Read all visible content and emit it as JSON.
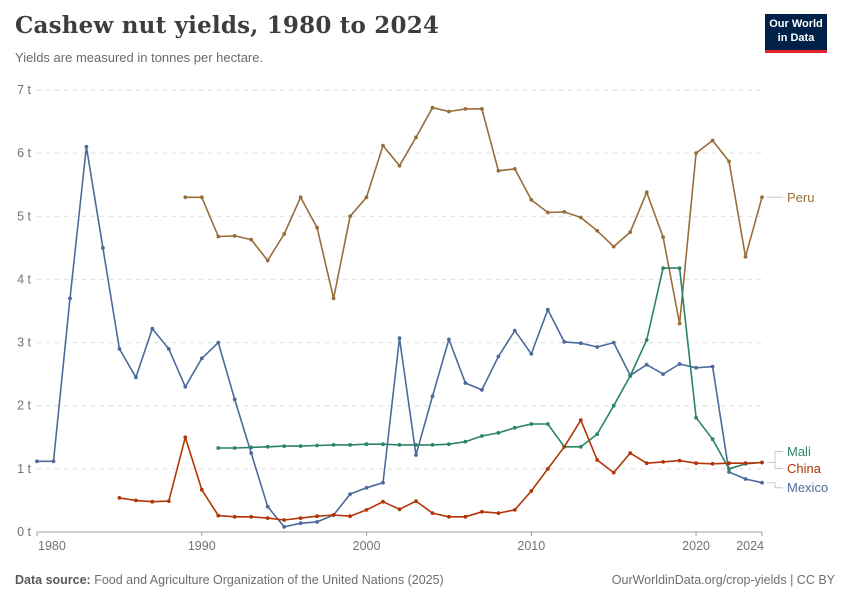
{
  "header": {
    "title": "Cashew nut yields, 1980 to 2024",
    "subtitle": "Yields are measured in tonnes per hectare."
  },
  "logo": {
    "line1": "Our World",
    "line2": "in Data",
    "bg_color": "#002147",
    "bar_color": "#E3242B"
  },
  "footer": {
    "source_label": "Data source:",
    "source_text": " Food and Agriculture Organization of the United Nations (2025)",
    "link_text": "OurWorldinData.org/crop-yields | CC BY"
  },
  "chart_data": {
    "type": "line",
    "title": "Cashew nut yields, 1980 to 2024",
    "unit": "tonnes per hectare",
    "xlim": [
      1980,
      2024
    ],
    "ylim": [
      0,
      7
    ],
    "x_ticks": [
      1980,
      1990,
      2000,
      2010,
      2020,
      2024
    ],
    "y_ticks": [
      {
        "value": 0,
        "label": "0 t"
      },
      {
        "value": 1,
        "label": "1 t"
      },
      {
        "value": 2,
        "label": "2 t"
      },
      {
        "value": 3,
        "label": "3 t"
      },
      {
        "value": 4,
        "label": "4 t"
      },
      {
        "value": 5,
        "label": "5 t"
      },
      {
        "value": 6,
        "label": "6 t"
      },
      {
        "value": 7,
        "label": "7 t"
      }
    ],
    "grid": "horizontal-dashed",
    "legend_position": "right-end-labels",
    "series": [
      {
        "name": "Mexico",
        "color": "#4C6A9C",
        "points": [
          [
            1980,
            1.12
          ],
          [
            1981,
            1.12
          ],
          [
            1982,
            3.7
          ],
          [
            1983,
            6.1
          ],
          [
            1984,
            4.5
          ],
          [
            1985,
            2.9
          ],
          [
            1986,
            2.45
          ],
          [
            1987,
            3.22
          ],
          [
            1988,
            2.9
          ],
          [
            1989,
            2.3
          ],
          [
            1990,
            2.75
          ],
          [
            1991,
            3.0
          ],
          [
            1992,
            2.1
          ],
          [
            1993,
            1.25
          ],
          [
            1994,
            0.4
          ],
          [
            1995,
            0.08
          ],
          [
            1996,
            0.14
          ],
          [
            1997,
            0.16
          ],
          [
            1998,
            0.27
          ],
          [
            1999,
            0.6
          ],
          [
            2000,
            0.7
          ],
          [
            2001,
            0.78
          ],
          [
            2002,
            3.07
          ],
          [
            2003,
            1.22
          ],
          [
            2004,
            2.15
          ],
          [
            2005,
            3.05
          ],
          [
            2006,
            2.36
          ],
          [
            2007,
            2.25
          ],
          [
            2008,
            2.78
          ],
          [
            2009,
            3.19
          ],
          [
            2010,
            2.82
          ],
          [
            2011,
            3.52
          ],
          [
            2012,
            3.01
          ],
          [
            2013,
            2.99
          ],
          [
            2014,
            2.93
          ],
          [
            2015,
            3.0
          ],
          [
            2016,
            2.48
          ],
          [
            2017,
            2.65
          ],
          [
            2018,
            2.5
          ],
          [
            2019,
            2.66
          ],
          [
            2020,
            2.6
          ],
          [
            2021,
            2.62
          ],
          [
            2022,
            0.95
          ],
          [
            2023,
            0.84
          ],
          [
            2024,
            0.78
          ]
        ]
      },
      {
        "name": "Peru",
        "color": "#996D39",
        "points": [
          [
            1989,
            5.3
          ],
          [
            1990,
            5.3
          ],
          [
            1991,
            4.68
          ],
          [
            1992,
            4.69
          ],
          [
            1993,
            4.63
          ],
          [
            1994,
            4.3
          ],
          [
            1995,
            4.72
          ],
          [
            1996,
            5.3
          ],
          [
            1997,
            4.82
          ],
          [
            1998,
            3.7
          ],
          [
            1999,
            5.0
          ],
          [
            2000,
            5.3
          ],
          [
            2001,
            6.12
          ],
          [
            2002,
            5.8
          ],
          [
            2003,
            6.25
          ],
          [
            2004,
            6.72
          ],
          [
            2005,
            6.66
          ],
          [
            2006,
            6.7
          ],
          [
            2007,
            6.7
          ],
          [
            2008,
            5.72
          ],
          [
            2009,
            5.75
          ],
          [
            2010,
            5.26
          ],
          [
            2011,
            5.06
          ],
          [
            2012,
            5.07
          ],
          [
            2013,
            4.98
          ],
          [
            2014,
            4.77
          ],
          [
            2015,
            4.52
          ],
          [
            2016,
            4.75
          ],
          [
            2017,
            5.38
          ],
          [
            2018,
            4.67
          ],
          [
            2019,
            3.3
          ],
          [
            2020,
            6.0
          ],
          [
            2021,
            6.2
          ],
          [
            2022,
            5.87
          ],
          [
            2023,
            4.36
          ],
          [
            2024,
            5.3
          ]
        ]
      },
      {
        "name": "Mali",
        "color": "#2C8465",
        "points": [
          [
            1991,
            1.33
          ],
          [
            1992,
            1.33
          ],
          [
            1993,
            1.34
          ],
          [
            1994,
            1.35
          ],
          [
            1995,
            1.36
          ],
          [
            1996,
            1.36
          ],
          [
            1997,
            1.37
          ],
          [
            1998,
            1.38
          ],
          [
            1999,
            1.38
          ],
          [
            2000,
            1.39
          ],
          [
            2001,
            1.39
          ],
          [
            2002,
            1.38
          ],
          [
            2003,
            1.38
          ],
          [
            2004,
            1.38
          ],
          [
            2005,
            1.39
          ],
          [
            2006,
            1.43
          ],
          [
            2007,
            1.52
          ],
          [
            2008,
            1.57
          ],
          [
            2009,
            1.65
          ],
          [
            2010,
            1.71
          ],
          [
            2011,
            1.71
          ],
          [
            2012,
            1.35
          ],
          [
            2013,
            1.35
          ],
          [
            2014,
            1.55
          ],
          [
            2015,
            2.0
          ],
          [
            2016,
            2.47
          ],
          [
            2017,
            3.04
          ],
          [
            2018,
            4.18
          ],
          [
            2019,
            4.18
          ],
          [
            2020,
            1.81
          ],
          [
            2021,
            1.47
          ],
          [
            2022,
            1.0
          ],
          [
            2023,
            1.08
          ],
          [
            2024,
            1.1
          ]
        ]
      },
      {
        "name": "China",
        "color": "#B13507",
        "points": [
          [
            1985,
            0.54
          ],
          [
            1986,
            0.5
          ],
          [
            1987,
            0.48
          ],
          [
            1988,
            0.49
          ],
          [
            1989,
            1.5
          ],
          [
            1990,
            0.67
          ],
          [
            1991,
            0.26
          ],
          [
            1992,
            0.24
          ],
          [
            1993,
            0.24
          ],
          [
            1994,
            0.22
          ],
          [
            1995,
            0.19
          ],
          [
            1996,
            0.22
          ],
          [
            1997,
            0.25
          ],
          [
            1998,
            0.27
          ],
          [
            1999,
            0.25
          ],
          [
            2000,
            0.35
          ],
          [
            2001,
            0.48
          ],
          [
            2002,
            0.36
          ],
          [
            2003,
            0.49
          ],
          [
            2004,
            0.3
          ],
          [
            2005,
            0.24
          ],
          [
            2006,
            0.24
          ],
          [
            2007,
            0.32
          ],
          [
            2008,
            0.3
          ],
          [
            2009,
            0.35
          ],
          [
            2010,
            0.65
          ],
          [
            2011,
            1.0
          ],
          [
            2012,
            1.35
          ],
          [
            2013,
            1.77
          ],
          [
            2014,
            1.14
          ],
          [
            2015,
            0.94
          ],
          [
            2016,
            1.25
          ],
          [
            2017,
            1.09
          ],
          [
            2018,
            1.11
          ],
          [
            2019,
            1.13
          ],
          [
            2020,
            1.09
          ],
          [
            2021,
            1.08
          ],
          [
            2022,
            1.09
          ],
          [
            2023,
            1.09
          ],
          [
            2024,
            1.1
          ]
        ]
      }
    ]
  }
}
